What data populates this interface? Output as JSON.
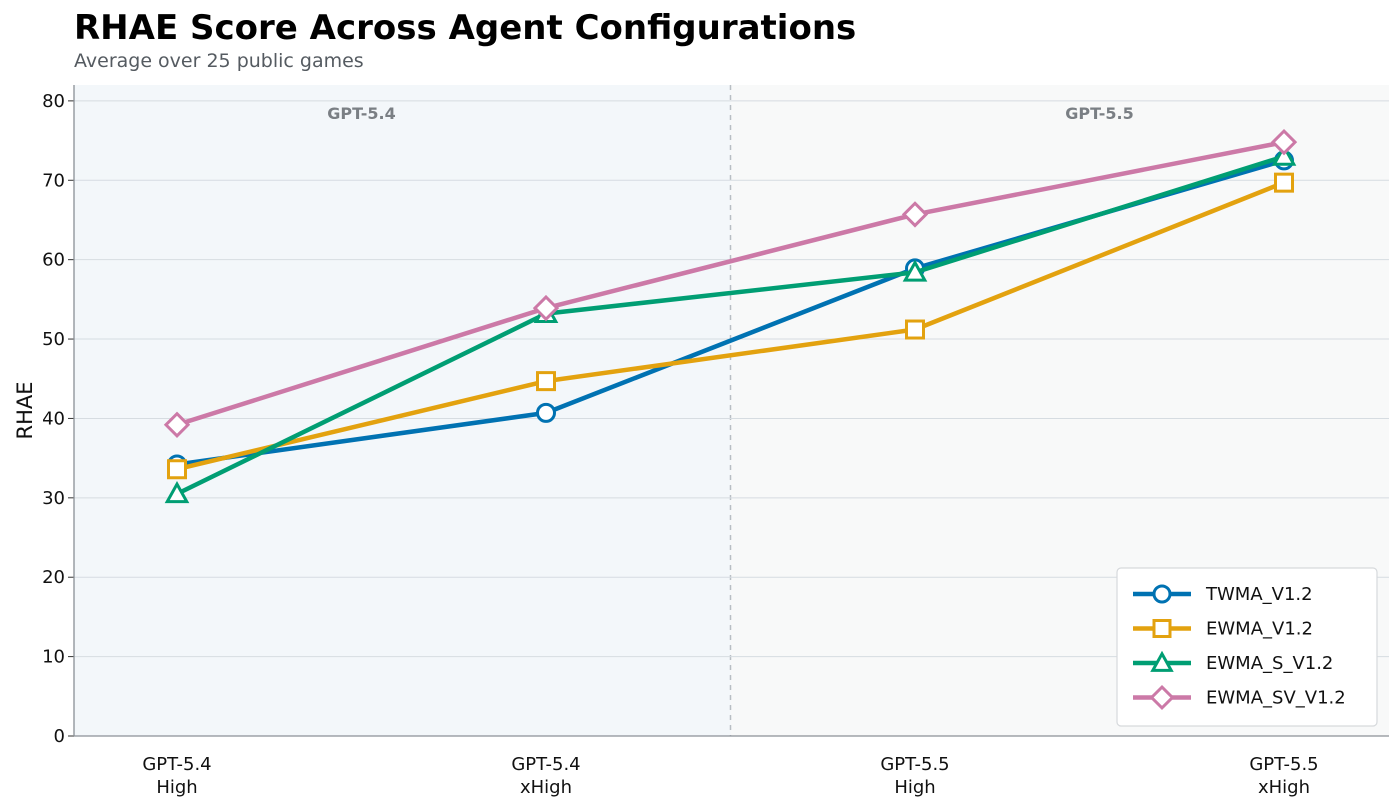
{
  "title": "RHAE Score Across Agent Configurations",
  "subtitle": "Average over 25 public games",
  "chart_data": {
    "type": "line",
    "title": "RHAE Score Across Agent Configurations",
    "subtitle": "Average over 25 public games",
    "ylabel": "RHAE",
    "xlabel": "",
    "ylim": [
      0,
      82
    ],
    "yticks": [
      0,
      10,
      20,
      30,
      40,
      50,
      60,
      70,
      80
    ],
    "categories": [
      [
        "GPT-5.4",
        "High"
      ],
      [
        "GPT-5.4",
        "xHigh"
      ],
      [
        "GPT-5.5",
        "High"
      ],
      [
        "GPT-5.5",
        "xHigh"
      ]
    ],
    "groups": [
      {
        "label": "GPT-5.4",
        "categories": [
          0,
          1
        ],
        "color": "#f3f7fa"
      },
      {
        "label": "GPT-5.5",
        "categories": [
          2,
          3
        ],
        "color": "#f8f9f9"
      }
    ],
    "grid": true,
    "legend_position": "lower-right",
    "series": [
      {
        "name": "TWMA_V1.2",
        "values": [
          34.2,
          40.7,
          58.9,
          72.5
        ],
        "color": "#0072b2",
        "marker": "circle"
      },
      {
        "name": "EWMA_V1.2",
        "values": [
          33.6,
          44.7,
          51.2,
          69.7
        ],
        "color": "#e3a20f",
        "marker": "square"
      },
      {
        "name": "EWMA_S_V1.2",
        "values": [
          30.5,
          53.2,
          58.4,
          73.0
        ],
        "color": "#009e73",
        "marker": "triangle"
      },
      {
        "name": "EWMA_SV_V1.2",
        "values": [
          39.2,
          53.9,
          65.7,
          74.8
        ],
        "color": "#cc79a7",
        "marker": "diamond"
      }
    ]
  }
}
